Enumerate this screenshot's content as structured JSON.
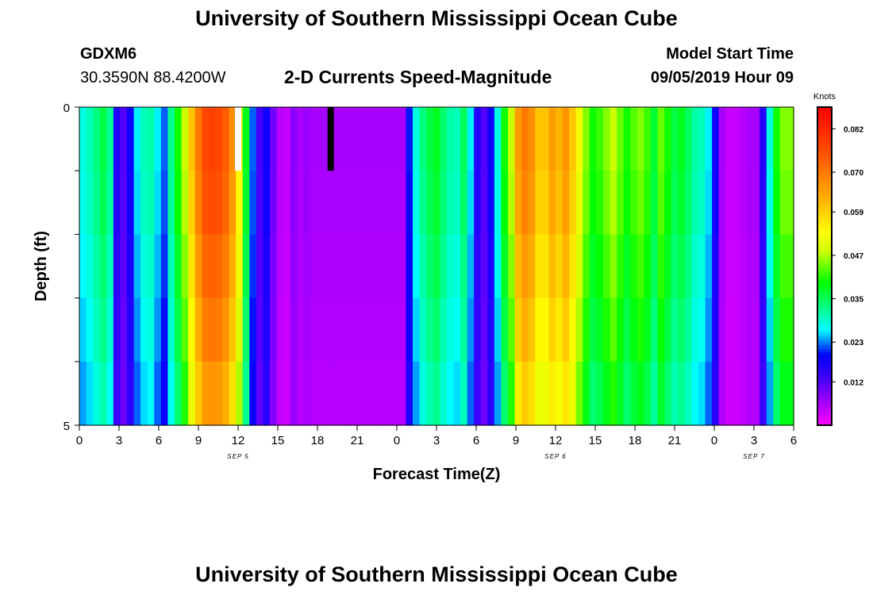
{
  "title": "University of Southern Mississippi Ocean Cube",
  "footer_title": "University of Southern Mississippi Ocean Cube",
  "station": {
    "id": "GDXM6",
    "coords": "30.3590N 88.4200W"
  },
  "model_start": {
    "label": "Model Start Time",
    "value": "09/05/2019 Hour 09"
  },
  "colors": {
    "background": "#ffffff",
    "text": "#000000",
    "marker_white": "#ffffff",
    "marker_black": "#000000"
  },
  "chart_data": {
    "type": "heatmap",
    "title": "2-D Currents Speed-Magnitude",
    "xlabel": "Forecast Time(Z)",
    "ylabel": "Depth (ft)",
    "ylim": [
      0,
      5
    ],
    "y_ticks": [
      {
        "value": 0,
        "label": "0"
      },
      {
        "value": 1,
        "label": ""
      },
      {
        "value": 2,
        "label": ""
      },
      {
        "value": 3,
        "label": ""
      },
      {
        "value": 4,
        "label": ""
      },
      {
        "value": 5,
        "label": "5"
      }
    ],
    "x_range_hours": [
      0,
      54
    ],
    "x_ticks": [
      {
        "hour": 0,
        "label": "0"
      },
      {
        "hour": 3,
        "label": "3"
      },
      {
        "hour": 6,
        "label": "6"
      },
      {
        "hour": 9,
        "label": "9"
      },
      {
        "hour": 12,
        "label": "12"
      },
      {
        "hour": 15,
        "label": "15"
      },
      {
        "hour": 18,
        "label": "18"
      },
      {
        "hour": 21,
        "label": "21"
      },
      {
        "hour": 24,
        "label": "0"
      },
      {
        "hour": 27,
        "label": "3"
      },
      {
        "hour": 30,
        "label": "6"
      },
      {
        "hour": 33,
        "label": "9"
      },
      {
        "hour": 36,
        "label": "12"
      },
      {
        "hour": 39,
        "label": "15"
      },
      {
        "hour": 42,
        "label": "18"
      },
      {
        "hour": 45,
        "label": "21"
      },
      {
        "hour": 48,
        "label": "0"
      },
      {
        "hour": 51,
        "label": "3"
      },
      {
        "hour": 54,
        "label": "6"
      }
    ],
    "date_labels": [
      {
        "hour": 12,
        "label": "SEP 5"
      },
      {
        "hour": 36,
        "label": "SEP 6"
      },
      {
        "hour": 51,
        "label": "SEP 7"
      }
    ],
    "colorbar": {
      "unit": "Knots",
      "min": 0.0,
      "max": 0.088,
      "ticks": [
        0.082,
        0.07,
        0.059,
        0.047,
        0.035,
        0.023,
        0.012
      ],
      "tick_labels": [
        "0.082",
        "0.070",
        "0.059",
        "0.047",
        "0.035",
        "0.023",
        "0.012"
      ]
    },
    "depth_levels": [
      0,
      1,
      2,
      3,
      4
    ],
    "profile_knots": [
      0.028,
      0.03,
      0.033,
      0.036,
      0.032,
      0.016,
      0.012,
      0.018,
      0.026,
      0.03,
      0.031,
      0.026,
      0.022,
      0.032,
      0.04,
      0.048,
      0.06,
      0.07,
      0.077,
      0.078,
      0.077,
      0.074,
      0.067,
      0.055,
      0.038,
      0.022,
      0.013,
      0.018,
      0.01,
      0.005,
      0.004,
      0.008,
      0.006,
      0.007,
      0.006,
      0.006,
      0.006,
      0.006,
      0.006,
      0.006,
      0.006,
      0.006,
      0.006,
      0.006,
      0.006,
      0.006,
      0.006,
      0.006,
      0.02,
      0.028,
      0.033,
      0.036,
      0.038,
      0.034,
      0.031,
      0.03,
      0.035,
      0.026,
      0.016,
      0.012,
      0.018,
      0.028,
      0.04,
      0.048,
      0.065,
      0.07,
      0.067,
      0.06,
      0.06,
      0.065,
      0.062,
      0.066,
      0.06,
      0.052,
      0.045,
      0.04,
      0.042,
      0.045,
      0.048,
      0.044,
      0.04,
      0.043,
      0.045,
      0.042,
      0.037,
      0.044,
      0.04,
      0.036,
      0.038,
      0.035,
      0.031,
      0.03,
      0.026,
      0.018,
      0.006,
      0.004,
      0.004,
      0.005,
      0.006,
      0.006,
      0.016,
      0.028,
      0.04,
      0.045,
      0.045
    ],
    "depth_factors": [
      1.0,
      0.98,
      0.94,
      0.9,
      0.85
    ],
    "markers": [
      {
        "hour": 12.0,
        "depth_end": 1,
        "color": "white"
      },
      {
        "hour": 19.0,
        "depth_end": 1,
        "color": "black"
      }
    ]
  }
}
